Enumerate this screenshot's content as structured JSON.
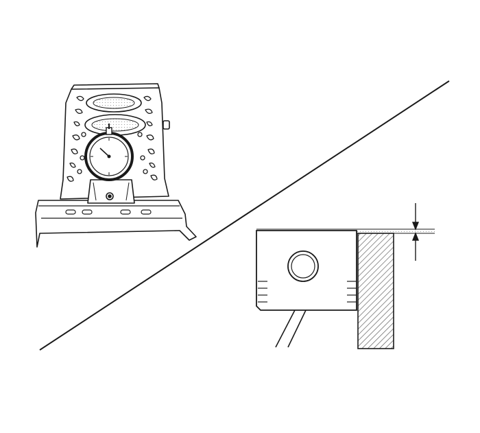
{
  "illustration": {
    "left_panel": "engine-block-with-dial-indicator",
    "right_panel": "piston-protrusion-measurement-detail",
    "line_color": "#1a1a1a",
    "hatch_color": "#555555",
    "background": "#ffffff"
  }
}
